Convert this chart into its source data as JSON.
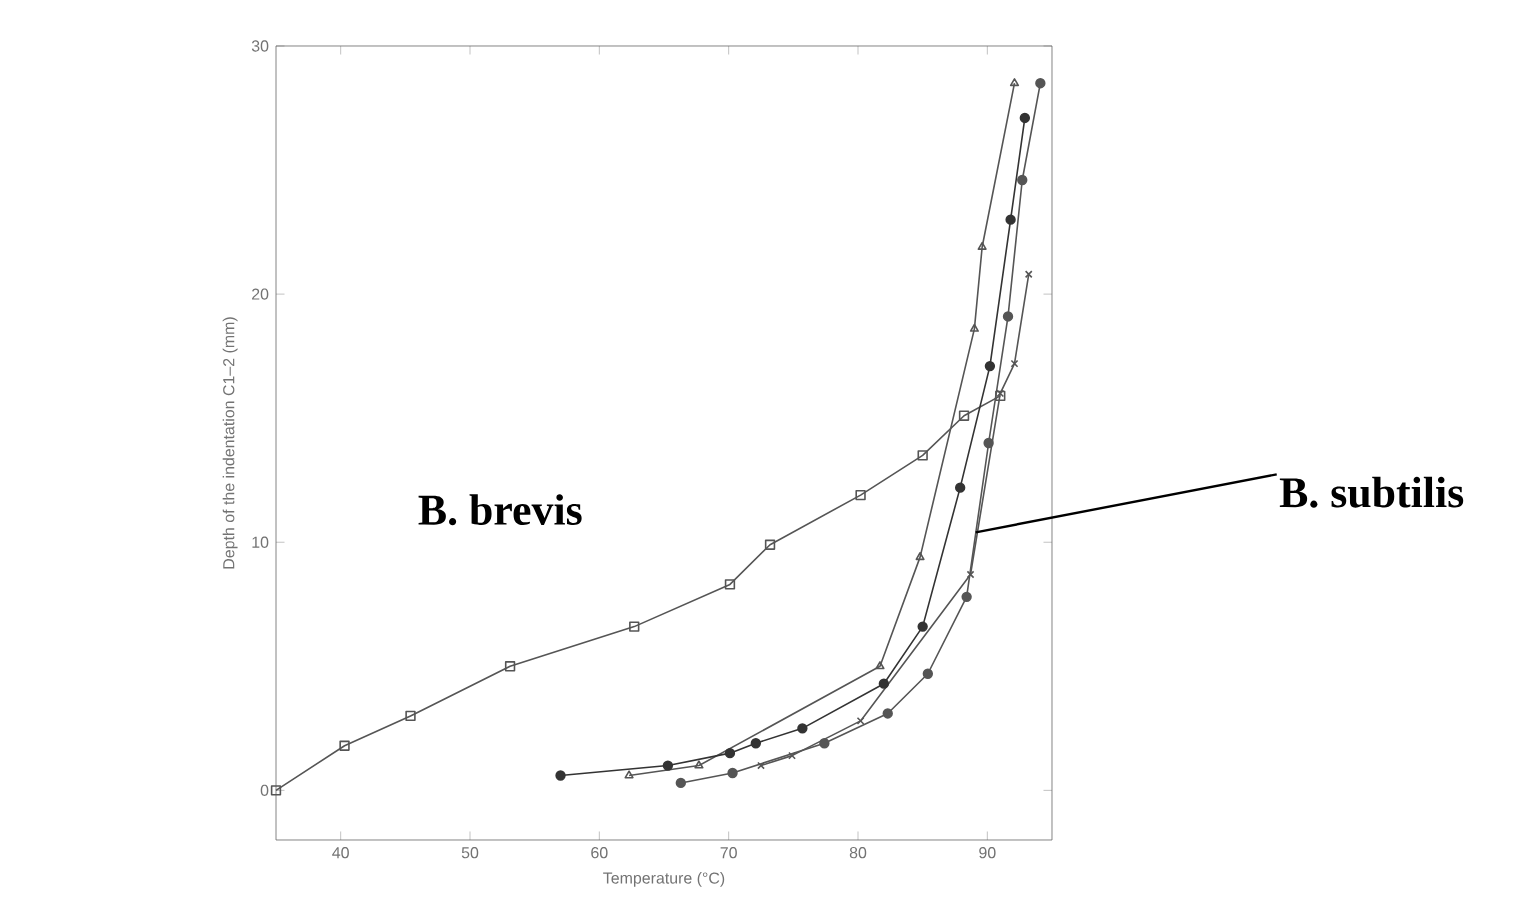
{
  "chart_data": {
    "type": "line",
    "xlabel": "Temperature (°C)",
    "ylabel": "Depth of the indentation C1–2 (mm)",
    "xlim": [
      35,
      95
    ],
    "ylim": [
      -2,
      30
    ],
    "xticks": [
      40,
      50,
      60,
      70,
      80,
      90
    ],
    "yticks": [
      0,
      10,
      20,
      30
    ],
    "grid": false,
    "series": [
      {
        "color": "#555555",
        "marker": "square",
        "x": [
          35,
          40.3,
          45.4,
          53.1,
          62.7,
          70.1,
          73.2,
          80.2,
          85,
          88.2,
          91
        ],
        "values": [
          0,
          1.8,
          3.0,
          5.0,
          6.6,
          8.3,
          9.9,
          11.9,
          13.5,
          15.1,
          15.9
        ]
      },
      {
        "color": "#555555",
        "marker": "triangle",
        "x": [
          62.3,
          67.7,
          81.7,
          84.8,
          89,
          89.6,
          92.1
        ],
        "values": [
          0.6,
          1.0,
          5.0,
          9.4,
          18.6,
          21.9,
          28.5
        ]
      },
      {
        "color": "#333333",
        "marker": "circle",
        "x": [
          57,
          65.3,
          70.1,
          72.1,
          75.7,
          82,
          85,
          87.9,
          90.2,
          91.8,
          92.9
        ],
        "values": [
          0.6,
          1.0,
          1.5,
          1.9,
          2.5,
          4.3,
          6.6,
          12.2,
          17.1,
          23,
          27.1
        ]
      },
      {
        "color": "#555555",
        "marker": "cross",
        "x": [
          72.5,
          74.9,
          80.2,
          88.7,
          91,
          92.1,
          93.2
        ],
        "values": [
          1.0,
          1.4,
          2.8,
          8.7,
          16,
          17.2,
          20.8
        ]
      },
      {
        "color": "#555555",
        "marker": "circle",
        "x": [
          66.3,
          70.3,
          77.4,
          82.3,
          85.4,
          88.4,
          90.1,
          91.6,
          92.7,
          94.1
        ],
        "values": [
          0.3,
          0.7,
          1.9,
          3.1,
          4.7,
          7.8,
          14.0,
          19.1,
          24.6,
          28.5
        ]
      }
    ],
    "annotations": [
      "B. brevis",
      {
        "text": "B. subtilis",
        "x": 89.1,
        "y": 10.4
      }
    ]
  }
}
